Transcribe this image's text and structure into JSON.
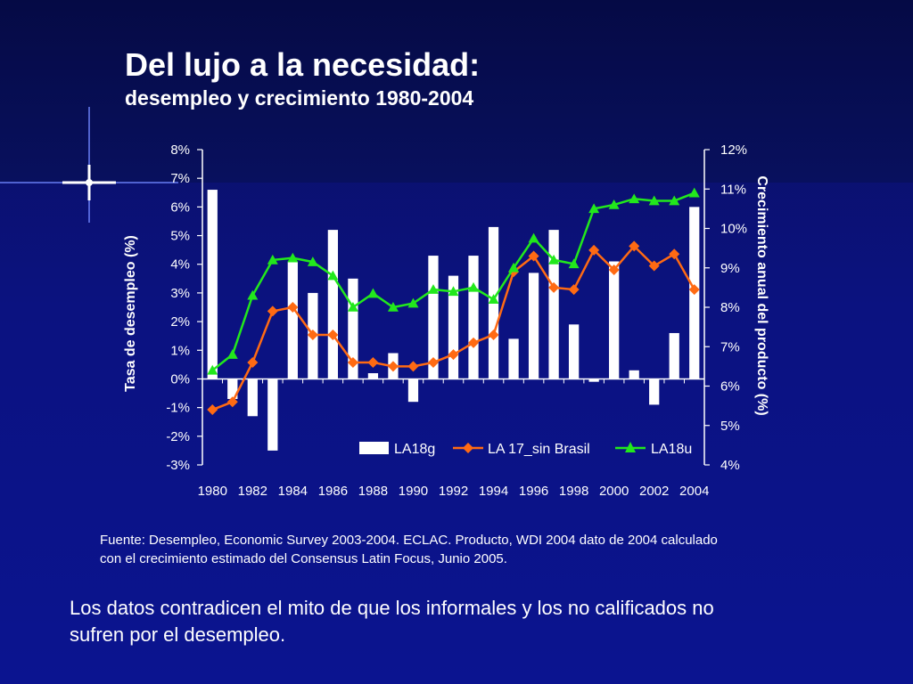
{
  "slide": {
    "title": "Del lujo a la necesidad:",
    "subtitle": "desempleo y crecimiento 1980-2004",
    "source_line1": "Fuente: Desempleo,  Economic Survey 2003-2004. ECLAC. Producto, WDI 2004 dato de 2004 calculado",
    "source_line2": "con el crecimiento estimado del Consensus Latin Focus, Junio 2005.",
    "conclusion_line1": "Los datos contradicen el mito de que los informales y los no calificados no",
    "conclusion_line2": "sufren por el desempleo."
  },
  "colors": {
    "bar": "#ffffff",
    "line_orange": "#ff6a13",
    "line_green": "#22e81c",
    "axis": "#ffffff"
  },
  "chart_data": {
    "type": "bar+line",
    "x": [
      1980,
      1981,
      1982,
      1983,
      1984,
      1985,
      1986,
      1987,
      1988,
      1989,
      1990,
      1991,
      1992,
      1993,
      1994,
      1995,
      1996,
      1997,
      1998,
      1999,
      2000,
      2001,
      2002,
      2003,
      2004
    ],
    "x_tick_labels": [
      "1980",
      "1982",
      "1984",
      "1986",
      "1988",
      "1990",
      "1992",
      "1994",
      "1996",
      "1998",
      "2000",
      "2002",
      "2004"
    ],
    "ylabel_left": "Tasa  de  desempleo  (%)",
    "ylabel_right": "Crecimiento anual del producto (%)",
    "ylim_left": [
      -3,
      8
    ],
    "yticks_left": [
      "8%",
      "7%",
      "6%",
      "5%",
      "4%",
      "3%",
      "2%",
      "1%",
      "0%",
      "-1%",
      "-2%",
      "-3%"
    ],
    "ylim_right": [
      4,
      12
    ],
    "yticks_right": [
      "12%",
      "11%",
      "10%",
      "9%",
      "8%",
      "7%",
      "6%",
      "5%",
      "4%"
    ],
    "legend_position": "bottom-right inside plot",
    "series": [
      {
        "name": "LA18g",
        "type": "bar",
        "axis": "left",
        "values": [
          6.6,
          -0.7,
          -1.3,
          -2.5,
          4.1,
          3.0,
          5.2,
          3.5,
          0.2,
          0.9,
          -0.8,
          4.3,
          3.6,
          4.3,
          5.3,
          1.4,
          3.7,
          5.2,
          1.9,
          -0.1,
          4.1,
          0.3,
          -0.9,
          1.6,
          6.0
        ]
      },
      {
        "name": "LA 17_sin Brasil",
        "type": "line",
        "axis": "right",
        "values": [
          5.4,
          5.6,
          6.6,
          7.9,
          8.0,
          7.3,
          7.3,
          6.6,
          6.6,
          6.5,
          6.5,
          6.6,
          6.8,
          7.1,
          7.3,
          8.9,
          9.3,
          8.5,
          8.45,
          9.45,
          8.95,
          9.55,
          9.05,
          9.35,
          8.45
        ]
      },
      {
        "name": "LA18u",
        "type": "line",
        "axis": "right",
        "values": [
          6.4,
          6.8,
          8.3,
          9.2,
          9.25,
          9.15,
          8.8,
          8.0,
          8.35,
          8.0,
          8.1,
          8.45,
          8.4,
          8.5,
          8.2,
          9.0,
          9.75,
          9.2,
          9.1,
          10.5,
          10.6,
          10.75,
          10.7,
          10.7,
          10.9
        ]
      }
    ]
  }
}
